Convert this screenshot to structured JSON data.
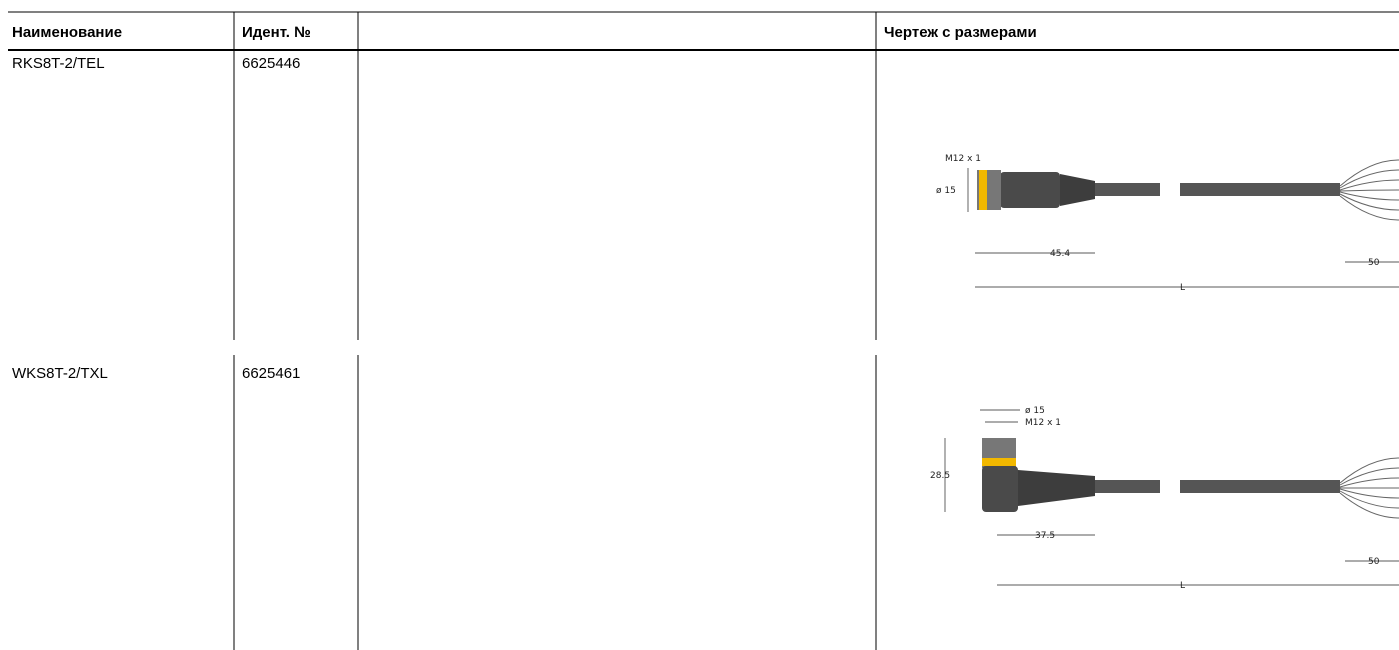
{
  "table": {
    "headers": {
      "name": "Наименование",
      "id": "Идент. №",
      "drawing": "Чертеж с размерами"
    },
    "rows": [
      {
        "name": "RKS8T-2/TEL",
        "id": "6625446",
        "drawing": {
          "thread": "M12 x 1",
          "diameter": "ø 15",
          "length": "45.4",
          "strip": "50",
          "total": "L"
        }
      },
      {
        "name": "WKS8T-2/TXL",
        "id": "6625461",
        "drawing": {
          "diameter": "ø 15",
          "thread": "M12 x 1",
          "height": "28.5",
          "length": "37.5",
          "strip": "50",
          "total": "L"
        }
      }
    ]
  }
}
